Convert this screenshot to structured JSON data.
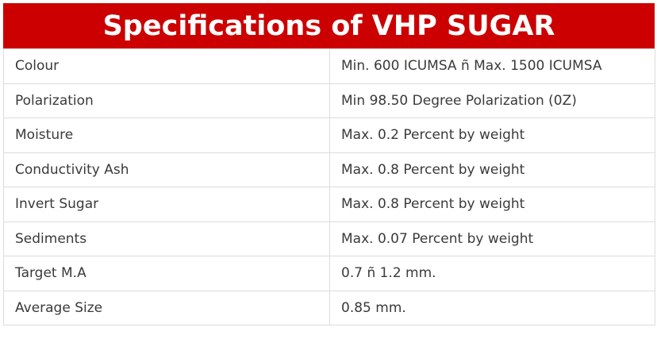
{
  "title": "Specifications of VHP SUGAR",
  "accent_color": "#cc0000",
  "rows": [
    {
      "label": "Colour",
      "value": "Min. 600 ICUMSA ñ Max. 1500 ICUMSA"
    },
    {
      "label": "Polarization",
      "value": "Min 98.50 Degree Polarization (0Z)"
    },
    {
      "label": "Moisture",
      "value": "Max. 0.2 Percent by weight"
    },
    {
      "label": "Conductivity Ash",
      "value": "Max. 0.8 Percent by weight"
    },
    {
      "label": "Invert Sugar",
      "value": "Max. 0.8 Percent by weight"
    },
    {
      "label": "Sediments",
      "value": "Max. 0.07 Percent by weight"
    },
    {
      "label": "Target M.A",
      "value": "0.7 ñ 1.2 mm."
    },
    {
      "label": "Average Size",
      "value": "0.85 mm."
    }
  ]
}
